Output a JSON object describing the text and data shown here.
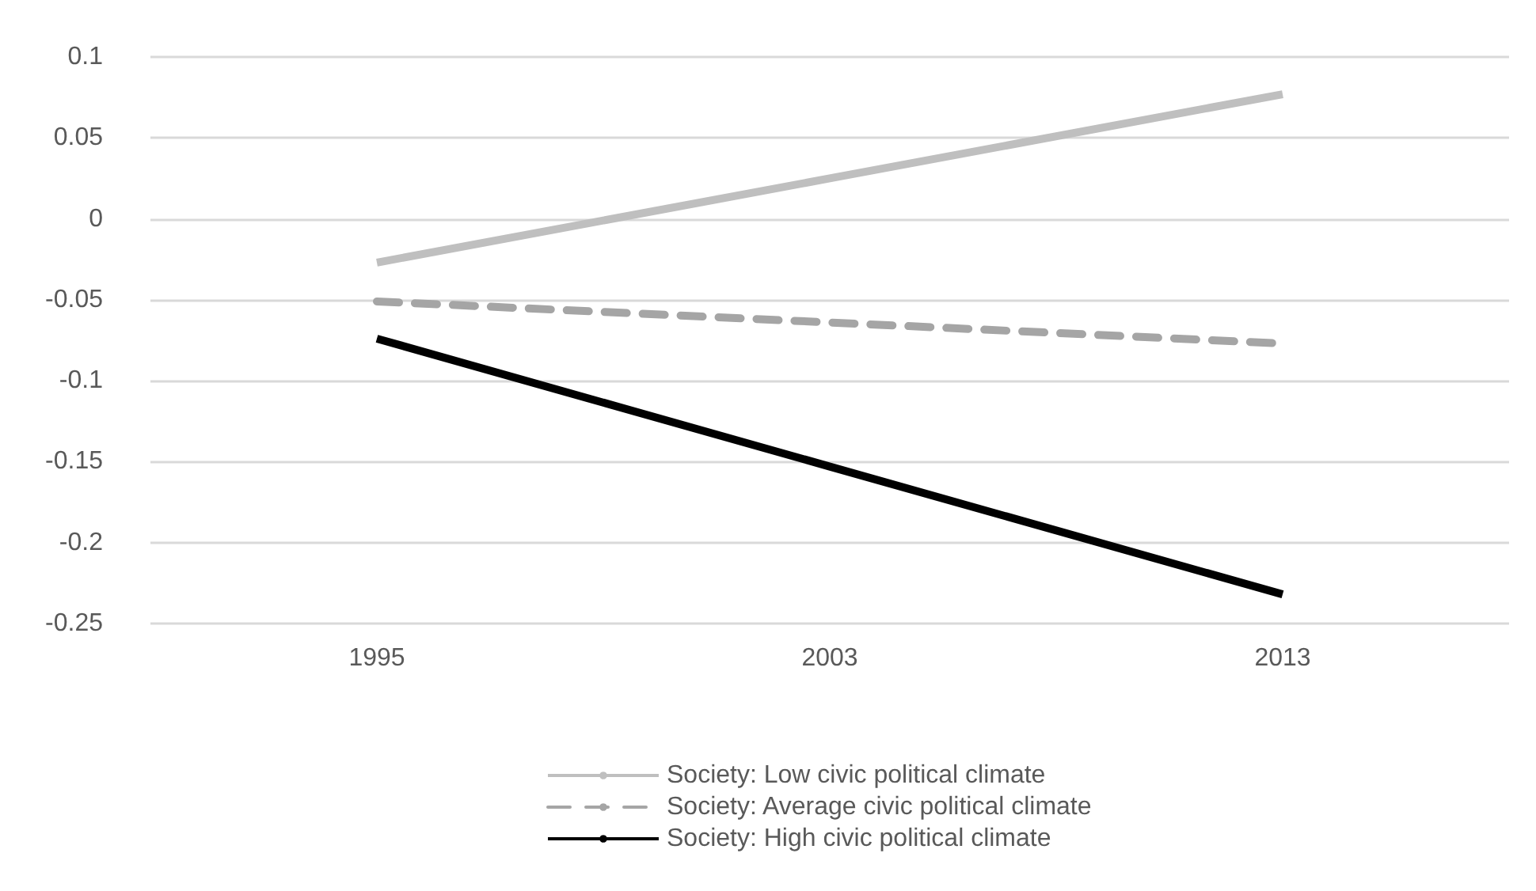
{
  "chart_data": {
    "type": "line",
    "categories": [
      "1995",
      "2003",
      "2013"
    ],
    "series": [
      {
        "name": "Society: Low civic political climate",
        "color": "#bfbfbf",
        "line_style": "solid",
        "values": [
          -0.027,
          0.025,
          0.077
        ]
      },
      {
        "name": "Society: Average civic political climate",
        "color": "#a5a5a5",
        "line_style": "dashed",
        "values": [
          -0.051,
          -0.064,
          -0.077
        ]
      },
      {
        "name": "Society: High civic political climate",
        "color": "#000000",
        "line_style": "solid",
        "values": [
          -0.074,
          -0.153,
          -0.232
        ]
      }
    ],
    "ylim": [
      -0.25,
      0.1
    ],
    "yticks": [
      -0.25,
      -0.2,
      -0.15,
      -0.1,
      -0.05,
      0,
      0.05,
      0.1
    ],
    "grid": "y",
    "legend": "bottom",
    "marker": "none"
  }
}
